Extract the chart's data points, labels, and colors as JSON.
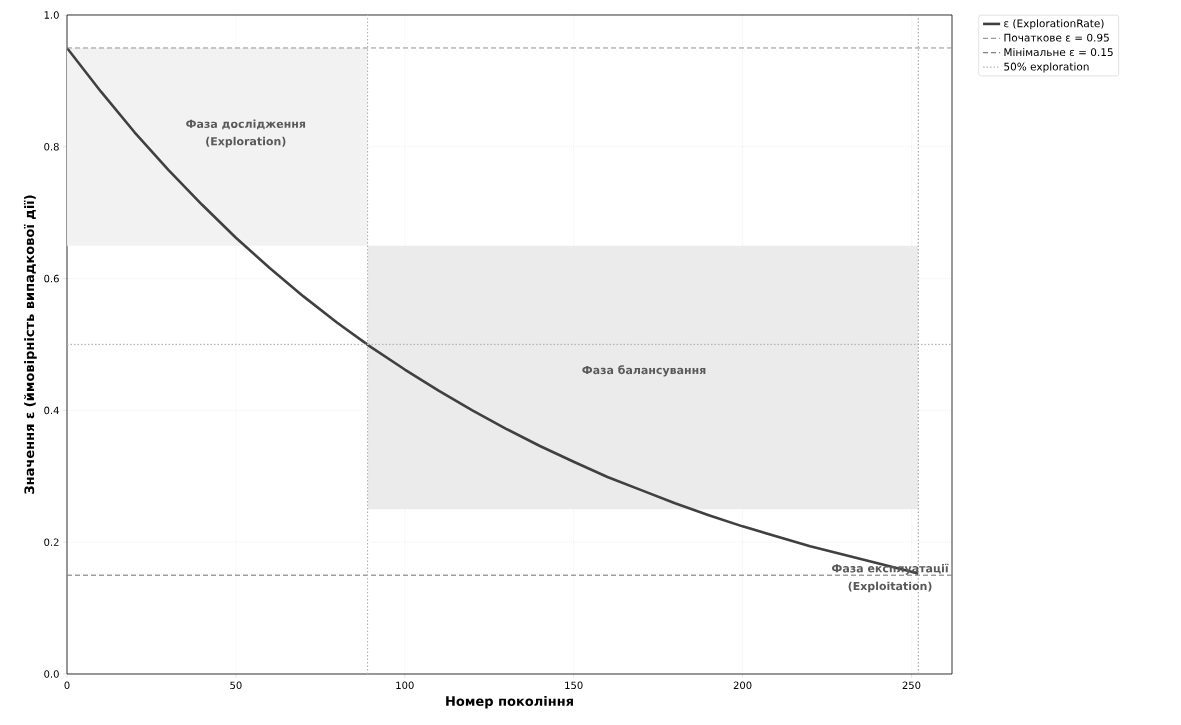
{
  "chart_data": {
    "type": "line",
    "xlabel": "Номер покоління",
    "ylabel": "Значення ε (ймовірність випадкової дії)",
    "xlim": [
      0,
      262
    ],
    "ylim": [
      0,
      1
    ],
    "xticks": [
      0,
      50,
      100,
      150,
      200,
      250
    ],
    "yticks": [
      {
        "value": 0,
        "label": "0.0"
      },
      {
        "value": 0.2,
        "label": "0.2"
      },
      {
        "value": 0.4,
        "label": "0.4"
      },
      {
        "value": 0.6,
        "label": "0.6"
      },
      {
        "value": 0.8,
        "label": "0.8"
      },
      {
        "value": 1,
        "label": "1.0"
      }
    ],
    "grid": true,
    "legend": "top right",
    "series": [
      {
        "type": "area",
        "color": "#f2f2f2",
        "x": [
          0,
          89,
          89,
          0
        ],
        "values": [
          0.65,
          0.65,
          0.95,
          0.95
        ]
      },
      {
        "type": "area",
        "color": "#ebebeb",
        "x": [
          89,
          252,
          252,
          89
        ],
        "values": [
          0.25,
          0.25,
          0.65,
          0.65
        ]
      },
      {
        "name": "ε (ExplorationRate)",
        "color": "#404040",
        "x": [
          0,
          10,
          20,
          30,
          40,
          50,
          60,
          70,
          80,
          90,
          100,
          110,
          120,
          130,
          140,
          150,
          160,
          170,
          180,
          190,
          200,
          210,
          220,
          230,
          240,
          250,
          252
        ],
        "values": [
          0.95,
          0.884,
          0.822,
          0.765,
          0.712,
          0.662,
          0.616,
          0.573,
          0.533,
          0.496,
          0.462,
          0.43,
          0.4,
          0.372,
          0.346,
          0.322,
          0.299,
          0.279,
          0.259,
          0.241,
          0.224,
          0.209,
          0.194,
          0.181,
          0.168,
          0.155,
          0.152
        ]
      }
    ],
    "ref_lines": [
      {
        "axis": "y",
        "value": 0.95,
        "label": "Початкове ε = 0.95",
        "color": "#999999",
        "line_style": "dashed"
      },
      {
        "axis": "y",
        "value": 0.15,
        "label": "Мінімальне ε = 0.15",
        "color": "#808080",
        "line_style": "dashed"
      },
      {
        "axis": "y",
        "value": 0.5,
        "label": "50% exploration",
        "color": "#b3b3b3",
        "line_style": "dotted"
      },
      {
        "axis": "x",
        "value": 89,
        "color": "#b3b3b3",
        "line_style": "dotted"
      },
      {
        "axis": "x",
        "value": 252,
        "color": "#a6a6a6",
        "line_style": "dotted"
      }
    ],
    "annotations": [
      "Фаза дослідження",
      "(Exploration)",
      "Фаза балансування",
      "Фаза експлуатації",
      "(Exploitation)"
    ]
  }
}
